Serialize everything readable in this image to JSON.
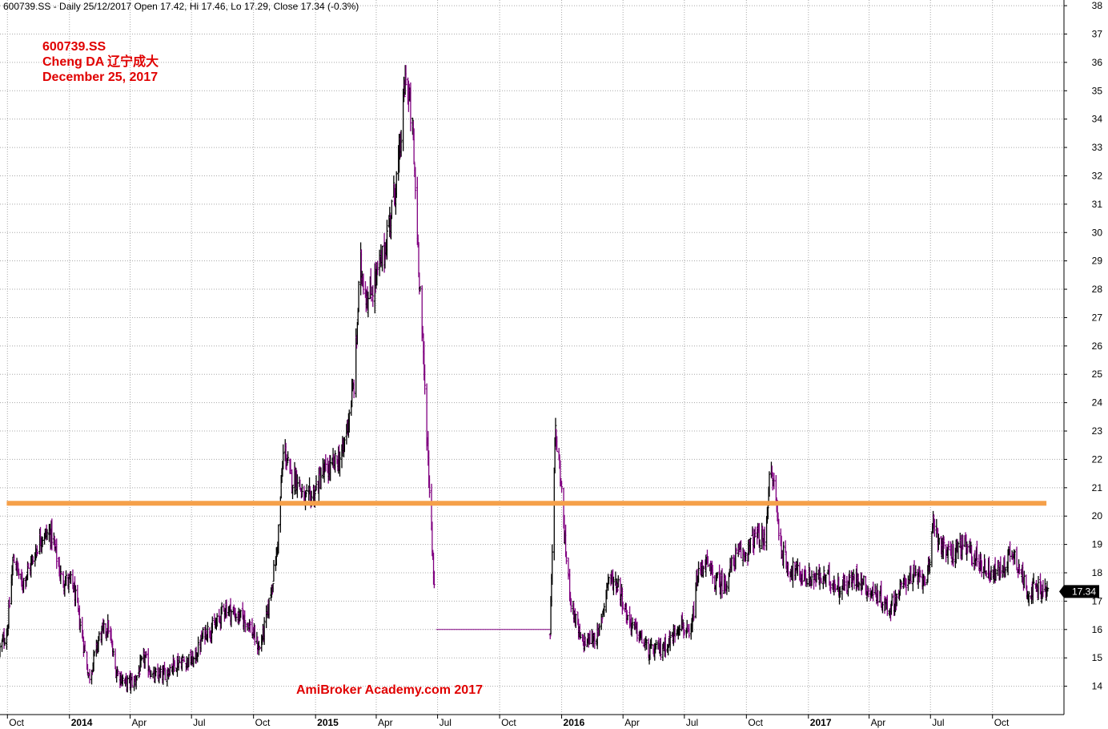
{
  "header": {
    "text": "600739.SS - Daily 25/12/2017 Open 17.42, Hi 17.46, Lo 17.29, Close 17.34 (-0.3%)"
  },
  "annotation": {
    "line1": "600739.SS",
    "line2": "Cheng DA 辽宁成大",
    "line3": "December 25, 2017"
  },
  "watermark": "AmiBroker Academy.com  2017",
  "colors": {
    "up_bar": "#000000",
    "down_bar": "#800080",
    "resistance": "#f5a04a",
    "annotation_text": "#e00000",
    "last_price_bg": "#000000"
  },
  "chart_data": {
    "type": "ohlc",
    "symbol": "600739.SS",
    "ylim": [
      13,
      38.2
    ],
    "yticks": [
      14,
      15,
      16,
      17,
      18,
      19,
      20,
      21,
      22,
      23,
      24,
      25,
      26,
      27,
      28,
      29,
      30,
      31,
      32,
      33,
      34,
      35,
      36,
      37,
      38
    ],
    "grid": true,
    "x_start": "2013-09-20",
    "x_end": "2018-01-15",
    "xticks": [
      {
        "date": "2013-10-01",
        "label": "Oct",
        "year": false
      },
      {
        "date": "2014-01-01",
        "label": "2014",
        "year": true
      },
      {
        "date": "2014-04-01",
        "label": "Apr",
        "year": false
      },
      {
        "date": "2014-07-01",
        "label": "Jul",
        "year": false
      },
      {
        "date": "2014-10-01",
        "label": "Oct",
        "year": false
      },
      {
        "date": "2015-01-01",
        "label": "2015",
        "year": true
      },
      {
        "date": "2015-04-01",
        "label": "Apr",
        "year": false
      },
      {
        "date": "2015-07-01",
        "label": "Jul",
        "year": false
      },
      {
        "date": "2015-10-01",
        "label": "Oct",
        "year": false
      },
      {
        "date": "2016-01-01",
        "label": "2016",
        "year": true
      },
      {
        "date": "2016-04-01",
        "label": "Apr",
        "year": false
      },
      {
        "date": "2016-07-01",
        "label": "Jul",
        "year": false
      },
      {
        "date": "2016-10-01",
        "label": "Oct",
        "year": false
      },
      {
        "date": "2017-01-01",
        "label": "2017",
        "year": true
      },
      {
        "date": "2017-04-01",
        "label": "Apr",
        "year": false
      },
      {
        "date": "2017-07-01",
        "label": "Jul",
        "year": false
      },
      {
        "date": "2017-10-01",
        "label": "Oct",
        "year": false
      }
    ],
    "resistance_line": {
      "value": 20.45,
      "from": "2013-09-30",
      "to": "2017-12-20"
    },
    "last_close": 17.34,
    "last_close_label": "17.34",
    "series": [
      {
        "date": "2013-09-20",
        "close": 15.3
      },
      {
        "date": "2013-10-01",
        "close": 16.0
      },
      {
        "date": "2013-10-10",
        "close": 18.6
      },
      {
        "date": "2013-10-22",
        "close": 17.6
      },
      {
        "date": "2013-11-05",
        "close": 18.3
      },
      {
        "date": "2013-11-20",
        "close": 19.3
      },
      {
        "date": "2013-12-05",
        "close": 19.4
      },
      {
        "date": "2013-12-20",
        "close": 17.8
      },
      {
        "date": "2014-01-06",
        "close": 17.6
      },
      {
        "date": "2014-01-20",
        "close": 15.8
      },
      {
        "date": "2014-01-30",
        "close": 14.3
      },
      {
        "date": "2014-02-15",
        "close": 15.8
      },
      {
        "date": "2014-02-28",
        "close": 16.1
      },
      {
        "date": "2014-03-10",
        "close": 14.6
      },
      {
        "date": "2014-03-25",
        "close": 14.1
      },
      {
        "date": "2014-04-08",
        "close": 14.2
      },
      {
        "date": "2014-04-22",
        "close": 15.0
      },
      {
        "date": "2014-05-06",
        "close": 14.3
      },
      {
        "date": "2014-05-20",
        "close": 14.4
      },
      {
        "date": "2014-06-05",
        "close": 14.8
      },
      {
        "date": "2014-06-20",
        "close": 14.9
      },
      {
        "date": "2014-07-05",
        "close": 14.9
      },
      {
        "date": "2014-07-20",
        "close": 15.9
      },
      {
        "date": "2014-08-05",
        "close": 16.1
      },
      {
        "date": "2014-08-20",
        "close": 16.8
      },
      {
        "date": "2014-09-05",
        "close": 16.5
      },
      {
        "date": "2014-09-22",
        "close": 16.3
      },
      {
        "date": "2014-10-10",
        "close": 15.3
      },
      {
        "date": "2014-10-22",
        "close": 16.6
      },
      {
        "date": "2014-11-05",
        "close": 18.8
      },
      {
        "date": "2014-11-15",
        "close": 22.5
      },
      {
        "date": "2014-11-25",
        "close": 21.3
      },
      {
        "date": "2014-12-05",
        "close": 21.4
      },
      {
        "date": "2014-12-15",
        "close": 20.5
      },
      {
        "date": "2014-12-30",
        "close": 20.8
      },
      {
        "date": "2015-01-10",
        "close": 21.5
      },
      {
        "date": "2015-01-25",
        "close": 21.7
      },
      {
        "date": "2015-02-10",
        "close": 22.2
      },
      {
        "date": "2015-02-28",
        "close": 24.8
      },
      {
        "date": "2015-03-08",
        "close": 28.9
      },
      {
        "date": "2015-03-20",
        "close": 27.6
      },
      {
        "date": "2015-04-02",
        "close": 28.5
      },
      {
        "date": "2015-04-12",
        "close": 29.2
      },
      {
        "date": "2015-04-25",
        "close": 31.0
      },
      {
        "date": "2015-05-05",
        "close": 32.5
      },
      {
        "date": "2015-05-15",
        "close": 35.7
      },
      {
        "date": "2015-05-25",
        "close": 33.5
      },
      {
        "date": "2015-06-05",
        "close": 28.0
      },
      {
        "date": "2015-06-15",
        "close": 23.0
      },
      {
        "date": "2015-06-29",
        "close": 16.0
      },
      {
        "date": "2015-12-15",
        "close": 15.8
      },
      {
        "date": "2015-12-22",
        "close": 23.0
      },
      {
        "date": "2015-12-30",
        "close": 21.5
      },
      {
        "date": "2016-01-06",
        "close": 19.0
      },
      {
        "date": "2016-01-15",
        "close": 17.0
      },
      {
        "date": "2016-01-30",
        "close": 15.5
      },
      {
        "date": "2016-02-25",
        "close": 15.8
      },
      {
        "date": "2016-03-10",
        "close": 17.8
      },
      {
        "date": "2016-03-25",
        "close": 17.6
      },
      {
        "date": "2016-04-08",
        "close": 16.4
      },
      {
        "date": "2016-04-25",
        "close": 15.8
      },
      {
        "date": "2016-05-10",
        "close": 15.2
      },
      {
        "date": "2016-05-25",
        "close": 15.3
      },
      {
        "date": "2016-06-10",
        "close": 15.6
      },
      {
        "date": "2016-06-25",
        "close": 16.3
      },
      {
        "date": "2016-07-10",
        "close": 15.6
      },
      {
        "date": "2016-07-20",
        "close": 17.8
      },
      {
        "date": "2016-08-01",
        "close": 18.4
      },
      {
        "date": "2016-08-15",
        "close": 17.7
      },
      {
        "date": "2016-08-30",
        "close": 17.6
      },
      {
        "date": "2016-09-15",
        "close": 18.6
      },
      {
        "date": "2016-09-30",
        "close": 18.7
      },
      {
        "date": "2016-10-15",
        "close": 19.3
      },
      {
        "date": "2016-10-28",
        "close": 19.1
      },
      {
        "date": "2016-11-05",
        "close": 21.5
      },
      {
        "date": "2016-11-12",
        "close": 21.1
      },
      {
        "date": "2016-11-20",
        "close": 19.0
      },
      {
        "date": "2016-12-01",
        "close": 18.2
      },
      {
        "date": "2016-12-15",
        "close": 18.0
      },
      {
        "date": "2016-12-30",
        "close": 17.8
      },
      {
        "date": "2017-01-15",
        "close": 17.8
      },
      {
        "date": "2017-01-30",
        "close": 17.8
      },
      {
        "date": "2017-02-15",
        "close": 17.5
      },
      {
        "date": "2017-03-01",
        "close": 17.6
      },
      {
        "date": "2017-03-15",
        "close": 17.9
      },
      {
        "date": "2017-03-30",
        "close": 17.4
      },
      {
        "date": "2017-04-15",
        "close": 17.2
      },
      {
        "date": "2017-05-01",
        "close": 16.7
      },
      {
        "date": "2017-05-15",
        "close": 17.3
      },
      {
        "date": "2017-05-30",
        "close": 17.9
      },
      {
        "date": "2017-06-15",
        "close": 17.8
      },
      {
        "date": "2017-06-30",
        "close": 18.0
      },
      {
        "date": "2017-07-05",
        "close": 20.0
      },
      {
        "date": "2017-07-15",
        "close": 19.0
      },
      {
        "date": "2017-07-30",
        "close": 18.6
      },
      {
        "date": "2017-08-15",
        "close": 19.0
      },
      {
        "date": "2017-08-30",
        "close": 18.7
      },
      {
        "date": "2017-09-15",
        "close": 18.3
      },
      {
        "date": "2017-09-30",
        "close": 18.0
      },
      {
        "date": "2017-10-15",
        "close": 18.1
      },
      {
        "date": "2017-10-30",
        "close": 18.8
      },
      {
        "date": "2017-11-10",
        "close": 18.2
      },
      {
        "date": "2017-11-20",
        "close": 17.4
      },
      {
        "date": "2017-12-05",
        "close": 17.4
      },
      {
        "date": "2017-12-25",
        "close": 17.34
      }
    ]
  }
}
